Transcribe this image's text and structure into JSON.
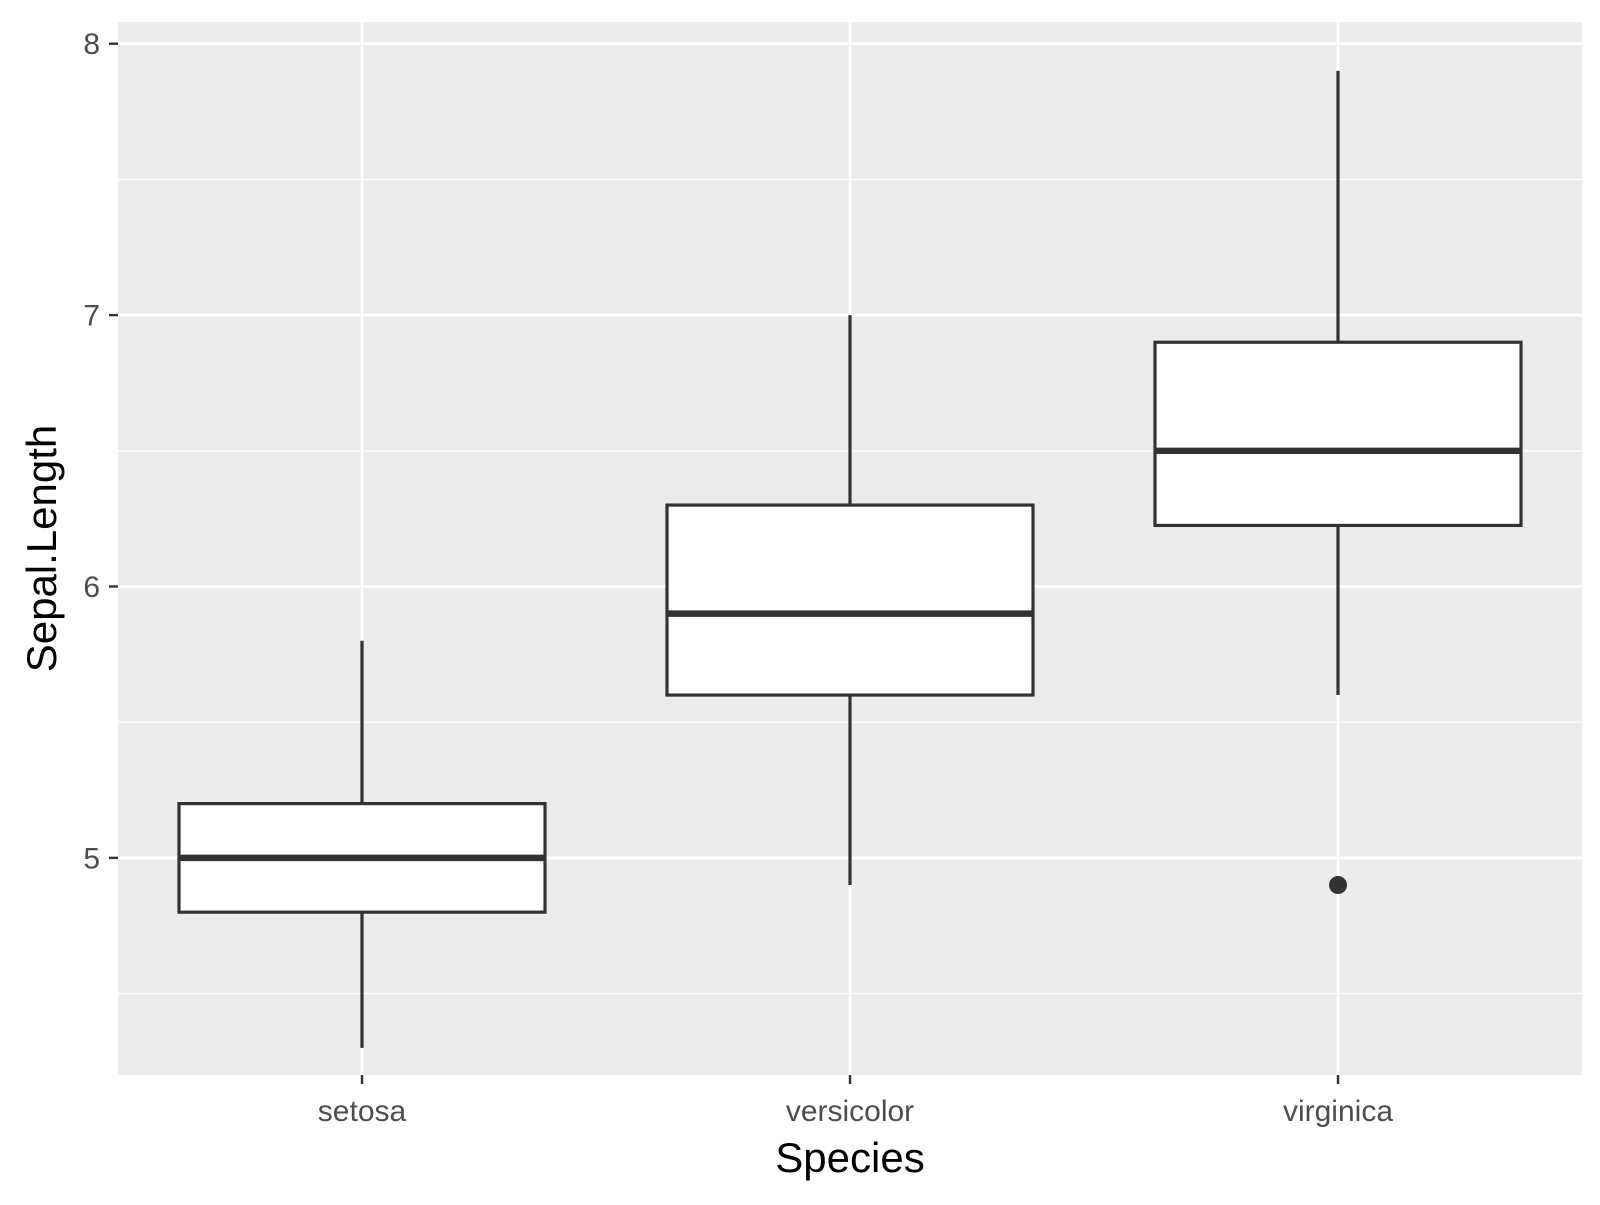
{
  "chart_data": {
    "type": "boxplot",
    "title": "",
    "xlabel": "Species",
    "ylabel": "Sepal.Length",
    "ylim": [
      4.2,
      8.08
    ],
    "yticks": [
      5,
      6,
      7,
      8
    ],
    "y_minor_ticks": [
      4.5,
      5.5,
      6.5,
      7.5
    ],
    "grid": true,
    "legend": "none",
    "categories": [
      "setosa",
      "versicolor",
      "virginica"
    ],
    "boxes": [
      {
        "category": "setosa",
        "whisker_low": 4.3,
        "q1": 4.8,
        "median": 5.0,
        "q3": 5.2,
        "whisker_high": 5.8,
        "outliers": []
      },
      {
        "category": "versicolor",
        "whisker_low": 4.9,
        "q1": 5.6,
        "median": 5.9,
        "q3": 6.3,
        "whisker_high": 7.0,
        "outliers": []
      },
      {
        "category": "virginica",
        "whisker_low": 5.6,
        "q1": 6.225,
        "median": 6.5,
        "q3": 6.9,
        "whisker_high": 7.9,
        "outliers": [
          4.9
        ]
      }
    ],
    "colors": {
      "panel_background": "#ebebeb",
      "grid": "#ffffff",
      "box_fill": "#ffffff",
      "box_stroke": "#333333",
      "tick": "#333333",
      "tick_label": "#4d4d4d",
      "axis_title": "#000000"
    }
  }
}
